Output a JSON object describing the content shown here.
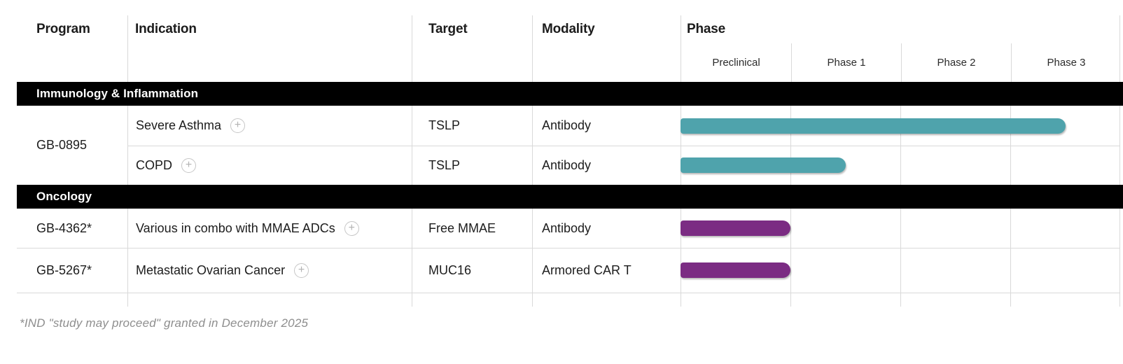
{
  "table": {
    "columns": [
      {
        "label": "Program"
      },
      {
        "label": "Indication"
      },
      {
        "label": "Target"
      },
      {
        "label": "Modality"
      },
      {
        "label": "Phase"
      }
    ],
    "phase_columns": [
      "Preclinical",
      "Phase 1",
      "Phase 2",
      "Phase 3"
    ],
    "sections": [
      {
        "label": "Immunology & Inflammation",
        "rows": [
          {
            "program": "GB-0895",
            "indication": "Severe Asthma",
            "target": "TSLP",
            "modality": "Antibody",
            "bar": {
              "end_phase": 3.5,
              "color": "teal"
            }
          },
          {
            "indication": "COPD",
            "target": "TSLP",
            "modality": "Antibody",
            "bar": {
              "end_phase": 1.5,
              "color": "teal"
            }
          }
        ]
      },
      {
        "label": "Oncology",
        "rows": [
          {
            "program": "GB-4362*",
            "indication": "Various in combo with MMAE ADCs",
            "target": "Free MMAE",
            "modality": "Antibody",
            "bar": {
              "end_phase": 1,
              "color": "purple"
            }
          },
          {
            "program": "GB-5267*",
            "indication": "Metastatic Ovarian Cancer",
            "target": "MUC16",
            "modality": "Armored CAR T",
            "bar": {
              "end_phase": 1,
              "color": "purple"
            }
          }
        ]
      }
    ]
  },
  "icons": {
    "expand": "+"
  },
  "colors": {
    "teal": "#4FA3AC",
    "purple": "#7B2C83",
    "section_bg": "#000000",
    "border": "#D9D9D9"
  },
  "footnote": "*IND \"study may proceed\" granted in December 2025",
  "chart_data": {
    "type": "bar",
    "title": "Drug development pipeline phase progress",
    "categories": [
      "GB-0895 — Severe Asthma (TSLP, Antibody)",
      "GB-0895 — COPD (TSLP, Antibody)",
      "GB-4362* — Various in combo with MMAE ADCs (Free MMAE, Antibody)",
      "GB-5267* — Metastatic Ovarian Cancer (MUC16, Armored CAR T)"
    ],
    "values": [
      3.5,
      1.5,
      1.0,
      1.0
    ],
    "value_unit": "phase units: 1=Preclinical complete, 2=Phase 1 complete, 3=Phase 2 complete, 4=Phase 3 complete",
    "x_axis_ticks": [
      "Preclinical",
      "Phase 1",
      "Phase 2",
      "Phase 3"
    ],
    "xlim": [
      0,
      4
    ],
    "series_colors": [
      "#4FA3AC",
      "#4FA3AC",
      "#7B2C83",
      "#7B2C83"
    ],
    "groups": [
      "Immunology & Inflammation",
      "Immunology & Inflammation",
      "Oncology",
      "Oncology"
    ],
    "legend": "none",
    "grid": "vertical column separators only"
  }
}
